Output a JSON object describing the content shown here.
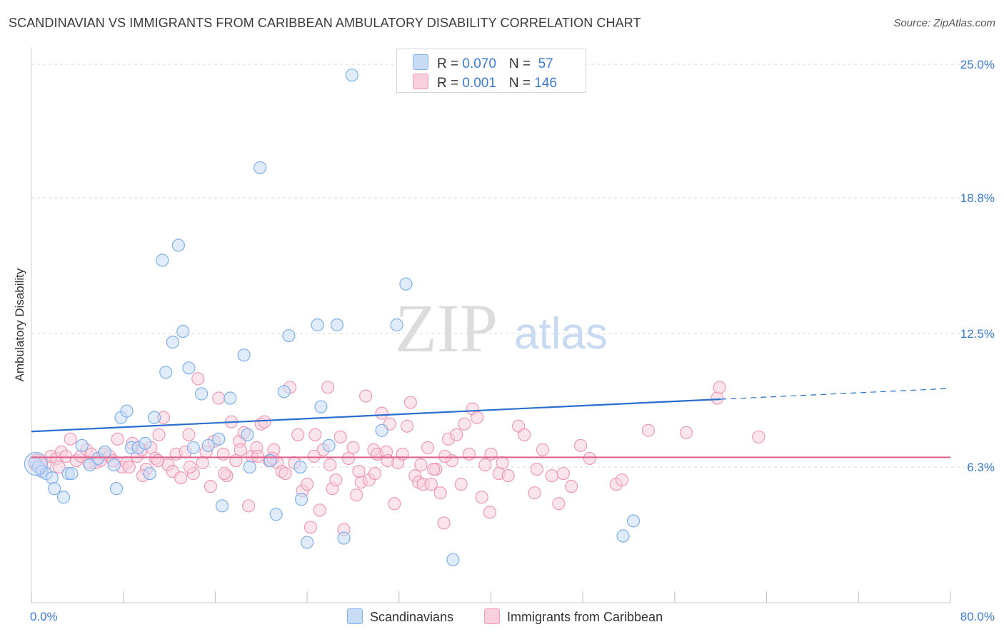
{
  "title": "SCANDINAVIAN VS IMMIGRANTS FROM CARIBBEAN AMBULATORY DISABILITY CORRELATION CHART",
  "source": "Source: ZipAtlas.com",
  "colors": {
    "scandinavians": "#7fb0ea",
    "scandinavians_fill": "#c9dcf5",
    "caribbean": "#ee9ab5",
    "caribbean_fill": "#f8d0dd",
    "trend_blue": "#2a6fcf",
    "trend_pink": "#e0628d",
    "tick_text": "#3b7bd8"
  },
  "legend": {
    "row1": {
      "r_label": "R = ",
      "r_value": "0.070",
      "n_label": "N = ",
      "n_value": " 57"
    },
    "row2": {
      "r_label": "R = ",
      "r_value": "0.001",
      "n_label": "N = ",
      "n_value": "146"
    }
  },
  "bottom_legend": {
    "scandinavians": "Scandinavians",
    "caribbean": "Immigrants from Caribbean"
  },
  "watermark": {
    "zip": "ZIP",
    "atlas": "atlas"
  },
  "chart_data": {
    "type": "scatter",
    "title": "SCANDINAVIAN VS IMMIGRANTS FROM CARIBBEAN AMBULATORY DISABILITY CORRELATION CHART",
    "xlabel": "",
    "ylabel": "Ambulatory Disability",
    "xlim": [
      0,
      80
    ],
    "ylim": [
      0,
      25.6
    ],
    "x_tick_labels": [
      "0.0%",
      "80.0%"
    ],
    "y_ticks": [
      {
        "value": 6.3,
        "label": "6.3%"
      },
      {
        "value": 12.5,
        "label": "12.5%"
      },
      {
        "value": 18.8,
        "label": "18.8%"
      },
      {
        "value": 25.0,
        "label": "25.0%"
      }
    ],
    "grid": true,
    "series": [
      {
        "name": "Scandinavians",
        "r": 0.07,
        "n": 57,
        "trend": {
          "x0": 0,
          "y0": 7.95,
          "x1": 60,
          "y1": 9.45,
          "dashed_to_x": 80,
          "dashed_to_y": 9.95
        },
        "points": [
          [
            0.3,
            6.5
          ],
          [
            0.6,
            6.3
          ],
          [
            0.9,
            6.1
          ],
          [
            1.3,
            6.0
          ],
          [
            1.8,
            5.8
          ],
          [
            2.0,
            5.3
          ],
          [
            2.8,
            4.9
          ],
          [
            3.2,
            6.0
          ],
          [
            3.5,
            6.0
          ],
          [
            4.4,
            7.3
          ],
          [
            5.1,
            6.4
          ],
          [
            5.8,
            6.7
          ],
          [
            6.4,
            7.0
          ],
          [
            7.2,
            6.4
          ],
          [
            7.4,
            5.3
          ],
          [
            7.8,
            8.6
          ],
          [
            8.3,
            8.9
          ],
          [
            8.7,
            7.2
          ],
          [
            9.3,
            7.2
          ],
          [
            9.9,
            7.4
          ],
          [
            10.3,
            6.0
          ],
          [
            10.7,
            8.6
          ],
          [
            11.4,
            15.9
          ],
          [
            11.7,
            10.7
          ],
          [
            12.3,
            12.1
          ],
          [
            12.8,
            16.6
          ],
          [
            13.2,
            12.6
          ],
          [
            13.7,
            10.9
          ],
          [
            14.1,
            7.2
          ],
          [
            14.8,
            9.7
          ],
          [
            15.4,
            7.3
          ],
          [
            16.3,
            7.6
          ],
          [
            16.6,
            4.5
          ],
          [
            17.3,
            9.5
          ],
          [
            18.5,
            11.5
          ],
          [
            18.8,
            7.8
          ],
          [
            19.0,
            6.3
          ],
          [
            19.9,
            20.2
          ],
          [
            21.3,
            4.1
          ],
          [
            22.0,
            9.8
          ],
          [
            22.4,
            12.4
          ],
          [
            23.5,
            4.8
          ],
          [
            24.0,
            2.8
          ],
          [
            24.9,
            12.9
          ],
          [
            25.2,
            9.1
          ],
          [
            26.6,
            12.9
          ],
          [
            27.2,
            3.0
          ],
          [
            27.9,
            24.5
          ],
          [
            30.5,
            8.0
          ],
          [
            31.8,
            12.9
          ],
          [
            32.6,
            14.8
          ],
          [
            36.7,
            2.0
          ],
          [
            51.5,
            3.1
          ],
          [
            52.4,
            3.8
          ],
          [
            25.9,
            7.3
          ],
          [
            20.8,
            6.6
          ],
          [
            23.4,
            6.3
          ]
        ]
      },
      {
        "name": "Immigrants from Caribbean",
        "r": 0.001,
        "n": 146,
        "trend": {
          "x0": 0,
          "y0": 6.75,
          "x1": 80,
          "y1": 6.75
        },
        "points": [
          [
            0.4,
            6.6
          ],
          [
            0.8,
            6.2
          ],
          [
            1.2,
            6.4
          ],
          [
            1.7,
            6.8
          ],
          [
            2.2,
            6.7
          ],
          [
            2.6,
            7.0
          ],
          [
            3.0,
            6.8
          ],
          [
            3.4,
            7.6
          ],
          [
            3.9,
            6.6
          ],
          [
            4.3,
            6.8
          ],
          [
            4.8,
            7.1
          ],
          [
            5.2,
            6.9
          ],
          [
            5.6,
            6.5
          ],
          [
            6.0,
            6.6
          ],
          [
            6.3,
            6.9
          ],
          [
            6.8,
            6.8
          ],
          [
            7.1,
            6.6
          ],
          [
            7.5,
            7.6
          ],
          [
            7.9,
            6.3
          ],
          [
            8.3,
            6.5
          ],
          [
            8.8,
            7.4
          ],
          [
            9.2,
            6.8
          ],
          [
            9.6,
            7.1
          ],
          [
            10.0,
            6.2
          ],
          [
            10.4,
            7.2
          ],
          [
            10.8,
            6.7
          ],
          [
            11.1,
            7.8
          ],
          [
            11.5,
            8.6
          ],
          [
            11.9,
            6.4
          ],
          [
            12.3,
            6.1
          ],
          [
            12.6,
            6.9
          ],
          [
            13.0,
            5.8
          ],
          [
            13.4,
            7.0
          ],
          [
            13.7,
            7.8
          ],
          [
            14.1,
            6.0
          ],
          [
            14.5,
            10.4
          ],
          [
            14.9,
            6.5
          ],
          [
            15.2,
            7.0
          ],
          [
            15.6,
            5.4
          ],
          [
            15.9,
            7.5
          ],
          [
            16.3,
            9.5
          ],
          [
            16.7,
            6.9
          ],
          [
            17.0,
            5.9
          ],
          [
            17.4,
            8.4
          ],
          [
            17.8,
            6.6
          ],
          [
            18.1,
            7.5
          ],
          [
            18.5,
            7.9
          ],
          [
            18.9,
            4.5
          ],
          [
            19.2,
            6.8
          ],
          [
            19.6,
            7.2
          ],
          [
            20.0,
            8.3
          ],
          [
            20.3,
            8.4
          ],
          [
            20.7,
            6.6
          ],
          [
            21.1,
            7.1
          ],
          [
            21.4,
            6.5
          ],
          [
            21.8,
            6.1
          ],
          [
            22.1,
            6.0
          ],
          [
            22.5,
            10.0
          ],
          [
            22.9,
            6.5
          ],
          [
            23.2,
            7.8
          ],
          [
            23.6,
            5.2
          ],
          [
            24.0,
            5.5
          ],
          [
            24.3,
            3.5
          ],
          [
            24.7,
            7.8
          ],
          [
            25.1,
            4.3
          ],
          [
            25.4,
            7.1
          ],
          [
            25.8,
            10.0
          ],
          [
            26.2,
            5.3
          ],
          [
            26.5,
            5.7
          ],
          [
            26.9,
            7.7
          ],
          [
            27.2,
            3.4
          ],
          [
            27.6,
            6.7
          ],
          [
            28.0,
            7.2
          ],
          [
            28.3,
            5.0
          ],
          [
            28.7,
            5.6
          ],
          [
            29.1,
            9.6
          ],
          [
            29.4,
            5.7
          ],
          [
            29.8,
            7.1
          ],
          [
            30.1,
            6.9
          ],
          [
            30.5,
            8.8
          ],
          [
            30.9,
            7.0
          ],
          [
            31.2,
            8.3
          ],
          [
            31.6,
            4.6
          ],
          [
            31.9,
            6.5
          ],
          [
            32.3,
            6.9
          ],
          [
            32.7,
            8.2
          ],
          [
            33.0,
            9.3
          ],
          [
            33.4,
            5.9
          ],
          [
            33.7,
            5.6
          ],
          [
            34.1,
            5.5
          ],
          [
            34.5,
            7.2
          ],
          [
            34.8,
            5.5
          ],
          [
            35.2,
            6.2
          ],
          [
            35.6,
            5.1
          ],
          [
            35.9,
            3.7
          ],
          [
            36.3,
            7.6
          ],
          [
            36.6,
            6.6
          ],
          [
            37.0,
            7.8
          ],
          [
            37.4,
            5.5
          ],
          [
            37.7,
            8.3
          ],
          [
            38.1,
            6.9
          ],
          [
            38.4,
            9.0
          ],
          [
            38.8,
            8.6
          ],
          [
            39.2,
            4.9
          ],
          [
            39.5,
            6.4
          ],
          [
            39.9,
            4.2
          ],
          [
            40.7,
            6.0
          ],
          [
            41.5,
            5.9
          ],
          [
            42.4,
            8.2
          ],
          [
            42.9,
            7.8
          ],
          [
            43.8,
            5.1
          ],
          [
            44.5,
            7.1
          ],
          [
            45.3,
            5.9
          ],
          [
            45.9,
            4.6
          ],
          [
            46.3,
            6.0
          ],
          [
            47.0,
            5.4
          ],
          [
            47.8,
            7.3
          ],
          [
            48.6,
            6.7
          ],
          [
            50.9,
            5.5
          ],
          [
            51.4,
            5.7
          ],
          [
            53.7,
            8.0
          ],
          [
            57.0,
            7.9
          ],
          [
            59.7,
            9.5
          ],
          [
            59.9,
            10.0
          ],
          [
            63.3,
            7.7
          ],
          [
            24.6,
            6.8
          ],
          [
            8.5,
            6.3
          ],
          [
            9.7,
            5.9
          ],
          [
            13.8,
            6.3
          ],
          [
            16.8,
            6.0
          ],
          [
            18.2,
            7.1
          ],
          [
            19.7,
            6.8
          ],
          [
            21.0,
            6.7
          ],
          [
            26.0,
            6.4
          ],
          [
            28.5,
            6.1
          ],
          [
            29.9,
            6.0
          ],
          [
            31.0,
            6.6
          ],
          [
            33.9,
            6.4
          ],
          [
            35.0,
            6.2
          ],
          [
            36.0,
            6.8
          ],
          [
            40.0,
            6.9
          ],
          [
            41.0,
            6.5
          ],
          [
            44.0,
            6.2
          ],
          [
            2.4,
            6.3
          ],
          [
            5.0,
            6.5
          ],
          [
            11.0,
            6.6
          ]
        ]
      }
    ]
  }
}
